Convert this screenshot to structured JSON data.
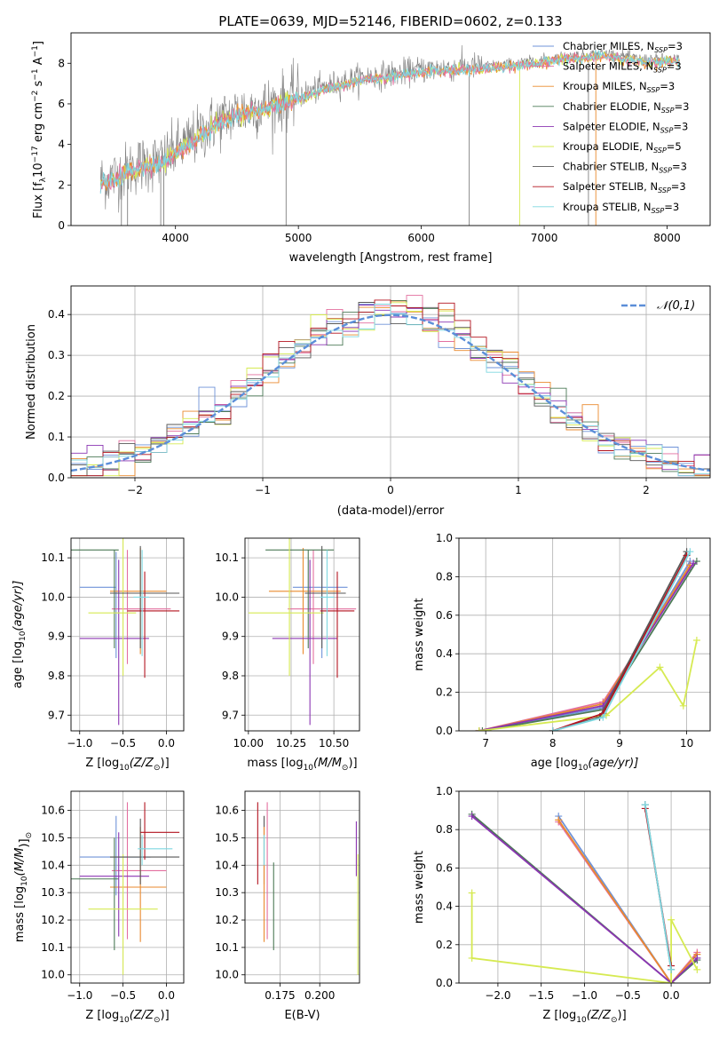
{
  "figure": {
    "title": "PLATE=0639, MJD=52146, FIBERID=0602, z=0.133"
  },
  "colors": {
    "chabrier_miles": "#6f93d8",
    "salpeter_miles": "#e36f9f",
    "kroupa_miles": "#ea8a2e",
    "chabrier_elodie": "#4c7a57",
    "salpeter_elodie": "#8b35b2",
    "kroupa_elodie": "#d6ea52",
    "chabrier_stelib": "#575757",
    "salpeter_stelib": "#b3131f",
    "kroupa_stelib": "#7dd7e0",
    "data_spectrum": "#808080",
    "normal_curve": "#5b8ed8",
    "grid": "#b0b0b0"
  },
  "chart_data": [
    {
      "type": "line",
      "panel": "spectrum",
      "xlabel": "wavelength [Angstrom, rest frame]",
      "ylabel": "Flux [f",
      "ylabel_sub": "λ",
      "ylabel_rest": "10",
      "ylabel_exp": "−17",
      "ylabel_units": " erg cm",
      "ylabel_units_exp": "−2",
      "ylabel_tail": " s",
      "ylabel_tail_exp": "−1",
      "ylabel_end": " A",
      "ylabel_end_exp": "−1",
      "ylabel_close": "]",
      "xlim": [
        3150,
        8350
      ],
      "ylim": [
        0,
        9.5
      ],
      "xticks": [
        4000,
        5000,
        6000,
        7000,
        8000
      ],
      "yticks": [
        0,
        2,
        4,
        6,
        8
      ],
      "continuum": {
        "x": [
          3390,
          3500,
          3700,
          3900,
          4000,
          4150,
          4300,
          4500,
          4800,
          5000,
          5200,
          5500,
          5800,
          6000,
          6300,
          6600,
          6900,
          7100,
          7300,
          7500,
          7800,
          8100
        ],
        "y": [
          2.2,
          2.4,
          3.0,
          3.2,
          3.7,
          4.3,
          5.0,
          5.6,
          6.0,
          6.4,
          6.8,
          7.3,
          7.5,
          7.7,
          7.8,
          7.9,
          8.1,
          8.3,
          8.4,
          8.5,
          8.2,
          8.2
        ]
      },
      "legend": [
        {
          "key": "chabrier_miles",
          "label": "Chabrier MILES, N",
          "sub": "SSP",
          "tail": "=3"
        },
        {
          "key": "salpeter_miles",
          "label": "Salpeter MILES, N",
          "sub": "SSP",
          "tail": "=3"
        },
        {
          "key": "kroupa_miles",
          "label": "Kroupa MILES, N",
          "sub": "SSP",
          "tail": "=3"
        },
        {
          "key": "chabrier_elodie",
          "label": "Chabrier ELODIE, N",
          "sub": "SSP",
          "tail": "=3"
        },
        {
          "key": "salpeter_elodie",
          "label": "Salpeter ELODIE, N",
          "sub": "SSP",
          "tail": "=3"
        },
        {
          "key": "kroupa_elodie",
          "label": "Kroupa ELODIE, N",
          "sub": "SSP",
          "tail": "=5"
        },
        {
          "key": "chabrier_stelib",
          "label": "Chabrier STELIB, N",
          "sub": "SSP",
          "tail": "=3"
        },
        {
          "key": "salpeter_stelib",
          "label": "Salpeter STELIB, N",
          "sub": "SSP",
          "tail": "=3"
        },
        {
          "key": "kroupa_stelib",
          "label": "Kroupa STELIB, N",
          "sub": "SSP",
          "tail": "=3"
        }
      ]
    },
    {
      "type": "histogram",
      "panel": "residuals",
      "xlabel": "(data-model)/error",
      "ylabel": "Normed distribution",
      "xlim": [
        -2.5,
        2.5
      ],
      "ylim": [
        0,
        0.47
      ],
      "xticks": [
        -2,
        -1,
        0,
        1,
        2
      ],
      "xtick_labels": [
        "−2",
        "−1",
        "0",
        "1",
        "2"
      ],
      "yticks": [
        0.0,
        0.1,
        0.2,
        0.3,
        0.4
      ],
      "ytick_labels": [
        "0.0",
        "0.1",
        "0.2",
        "0.3",
        "0.4"
      ],
      "normal_legend": "𝒩(0,1)",
      "bins": [
        -2.5,
        2.5,
        40
      ]
    },
    {
      "type": "scatter",
      "panel": "age_vs_Z",
      "xlabel": "Z [log",
      "xlabel_sub": "10",
      "xlabel_rest": "(Z/Z",
      "xlabel_sub2": "⊙",
      "xlabel_end": ")]",
      "ylabel": "age  [log",
      "ylabel_sub": "10",
      "ylabel_rest": "(age/yr)]",
      "xlim": [
        -1.1,
        0.2
      ],
      "ylim": [
        9.66,
        10.15
      ],
      "xticks": [
        -1.0,
        -0.5,
        0.0
      ],
      "xtick_labels": [
        "−1.0",
        "−0.5",
        "0.0"
      ],
      "yticks": [
        9.7,
        9.8,
        9.9,
        10.0,
        10.1
      ],
      "ytick_labels": [
        "9.7",
        "9.8",
        "9.9",
        "10.0",
        "10.1"
      ],
      "points": [
        {
          "key": "chabrier_miles",
          "x": -0.58,
          "xerr": [
            0.42,
            0.0
          ],
          "y": 10.025,
          "yerr": [
            0.18,
            0.09
          ]
        },
        {
          "key": "salpeter_miles",
          "x": -0.45,
          "xerr": [
            0.18,
            0.5
          ],
          "y": 9.97,
          "yerr": [
            0.14,
            0.15
          ]
        },
        {
          "key": "kroupa_miles",
          "x": -0.3,
          "xerr": [
            0.35,
            0.3
          ],
          "y": 10.015,
          "yerr": [
            0.16,
            0.11
          ]
        },
        {
          "key": "chabrier_elodie",
          "x": -0.6,
          "xerr": [
            0.5,
            0.05
          ],
          "y": 10.12,
          "yerr": [
            0.25,
            0.0
          ]
        },
        {
          "key": "salpeter_elodie",
          "x": -0.55,
          "xerr": [
            0.45,
            0.35
          ],
          "y": 9.895,
          "yerr": [
            0.22,
            0.2
          ]
        },
        {
          "key": "kroupa_elodie",
          "x": -0.5,
          "xerr": [
            0.4,
            0.15
          ],
          "y": 9.96,
          "yerr": [
            0.16,
            0.2
          ]
        },
        {
          "key": "chabrier_stelib",
          "x": -0.3,
          "xerr": [
            0.35,
            0.45
          ],
          "y": 10.01,
          "yerr": [
            0.14,
            0.12
          ]
        },
        {
          "key": "salpeter_stelib",
          "x": -0.25,
          "xerr": [
            0.2,
            0.4
          ],
          "y": 9.965,
          "yerr": [
            0.17,
            0.1
          ]
        },
        {
          "key": "kroupa_stelib",
          "x": -0.28,
          "xerr": [
            0.1,
            0.08
          ],
          "y": 10.0,
          "yerr": [
            0.15,
            0.12
          ]
        }
      ]
    },
    {
      "type": "scatter",
      "panel": "age_vs_mass",
      "xlabel": "mass [log",
      "xlabel_sub": "10",
      "xlabel_rest": "(M/M",
      "xlabel_sub2": "⊙",
      "xlabel_end": ")]",
      "xlim": [
        9.98,
        10.65
      ],
      "ylim": [
        9.66,
        10.15
      ],
      "xticks": [
        10.0,
        10.25,
        10.5
      ],
      "xtick_labels": [
        "10.00",
        "10.25",
        "10.50"
      ],
      "yticks": [
        9.7,
        9.8,
        9.9,
        10.0,
        10.1
      ],
      "ytick_labels": [
        "9.7",
        "9.8",
        "9.9",
        "10.0",
        "10.1"
      ],
      "points": [
        {
          "key": "chabrier_miles",
          "x": 10.43,
          "xerr": [
            0.17,
            0.15
          ],
          "y": 10.025,
          "yerr": [
            0.18,
            0.09
          ]
        },
        {
          "key": "salpeter_miles",
          "x": 10.38,
          "xerr": [
            0.15,
            0.25
          ],
          "y": 9.97,
          "yerr": [
            0.14,
            0.15
          ]
        },
        {
          "key": "kroupa_miles",
          "x": 10.32,
          "xerr": [
            0.2,
            0.22
          ],
          "y": 10.015,
          "yerr": [
            0.16,
            0.11
          ]
        },
        {
          "key": "chabrier_elodie",
          "x": 10.35,
          "xerr": [
            0.25,
            0.15
          ],
          "y": 10.12,
          "yerr": [
            0.25,
            0.0
          ]
        },
        {
          "key": "salpeter_elodie",
          "x": 10.36,
          "xerr": [
            0.22,
            0.16
          ],
          "y": 9.895,
          "yerr": [
            0.22,
            0.2
          ]
        },
        {
          "key": "kroupa_elodie",
          "x": 10.24,
          "xerr": [
            0.24,
            0.2
          ],
          "y": 9.96,
          "yerr": [
            0.16,
            0.2
          ]
        },
        {
          "key": "chabrier_stelib",
          "x": 10.43,
          "xerr": [
            0.1,
            0.14
          ],
          "y": 10.01,
          "yerr": [
            0.14,
            0.12
          ]
        },
        {
          "key": "salpeter_stelib",
          "x": 10.52,
          "xerr": [
            0.1,
            0.1
          ],
          "y": 9.965,
          "yerr": [
            0.17,
            0.1
          ]
        },
        {
          "key": "kroupa_stelib",
          "x": 10.46,
          "xerr": [
            0.04,
            0.04
          ],
          "y": 10.0,
          "yerr": [
            0.15,
            0.12
          ]
        }
      ]
    },
    {
      "type": "line",
      "panel": "mass_weight_vs_age",
      "xlabel": "age  [log",
      "xlabel_sub": "10",
      "xlabel_rest": "(age/yr)]",
      "ylabel": "mass weight",
      "xlim": [
        6.6,
        10.35
      ],
      "ylim": [
        0,
        1.0
      ],
      "xticks": [
        7,
        8,
        9,
        10
      ],
      "yticks": [
        0.0,
        0.2,
        0.4,
        0.6,
        0.8,
        1.0
      ],
      "ytick_labels": [
        "0.0",
        "0.2",
        "0.4",
        "0.6",
        "0.8",
        "1.0"
      ],
      "series": [
        {
          "key": "chabrier_miles",
          "x": [
            6.9,
            8.75,
            10.05
          ],
          "y": [
            0.0,
            0.12,
            0.88
          ]
        },
        {
          "key": "salpeter_miles",
          "x": [
            6.9,
            8.75,
            10.05
          ],
          "y": [
            0.0,
            0.15,
            0.85
          ]
        },
        {
          "key": "kroupa_miles",
          "x": [
            6.9,
            8.75,
            10.05
          ],
          "y": [
            0.0,
            0.14,
            0.86
          ]
        },
        {
          "key": "chabrier_elodie",
          "x": [
            6.95,
            8.75,
            10.15
          ],
          "y": [
            0.0,
            0.11,
            0.88
          ]
        },
        {
          "key": "salpeter_elodie",
          "x": [
            6.9,
            8.75,
            10.1
          ],
          "y": [
            0.0,
            0.13,
            0.87
          ]
        },
        {
          "key": "kroupa_elodie",
          "x": [
            6.9,
            8.8,
            9.6,
            9.95,
            10.15
          ],
          "y": [
            0.0,
            0.08,
            0.33,
            0.13,
            0.47
          ]
        },
        {
          "key": "chabrier_stelib",
          "x": [
            8.0,
            8.7,
            10.0
          ],
          "y": [
            0.0,
            0.07,
            0.93
          ]
        },
        {
          "key": "salpeter_stelib",
          "x": [
            8.0,
            8.75,
            10.0
          ],
          "y": [
            0.0,
            0.09,
            0.91
          ]
        },
        {
          "key": "kroupa_stelib",
          "x": [
            8.0,
            8.75,
            10.05
          ],
          "y": [
            0.0,
            0.07,
            0.93
          ]
        }
      ]
    },
    {
      "type": "scatter",
      "panel": "mass_vs_Z",
      "xlabel": "Z [log",
      "xlabel_sub": "10",
      "xlabel_rest": "(Z/Z",
      "xlabel_sub2": "⊙",
      "xlabel_end": ")]",
      "ylabel": "mass [log",
      "ylabel_sub": "10",
      "ylabel_rest": "(M/M",
      "ylabel_sub2": "⊙",
      "ylabel_end": ")]",
      "xlim": [
        -1.1,
        0.2
      ],
      "ylim": [
        9.97,
        10.67
      ],
      "xticks": [
        -1.0,
        -0.5,
        0.0
      ],
      "xtick_labels": [
        "−1.0",
        "−0.5",
        "0.0"
      ],
      "yticks": [
        10.0,
        10.1,
        10.2,
        10.3,
        10.4,
        10.5,
        10.6
      ],
      "ytick_labels": [
        "10.0",
        "10.1",
        "10.2",
        "10.3",
        "10.4",
        "10.5",
        "10.6"
      ],
      "points": [
        {
          "key": "chabrier_miles",
          "x": -0.58,
          "xerr": [
            0.42,
            0.4
          ],
          "y": 10.43,
          "yerr": [
            0.14,
            0.15
          ]
        },
        {
          "key": "salpeter_miles",
          "x": -0.45,
          "xerr": [
            0.18,
            0.45
          ],
          "y": 10.38,
          "yerr": [
            0.25,
            0.25
          ]
        },
        {
          "key": "kroupa_miles",
          "x": -0.3,
          "xerr": [
            0.35,
            0.3
          ],
          "y": 10.32,
          "yerr": [
            0.2,
            0.22
          ]
        },
        {
          "key": "chabrier_elodie",
          "x": -0.6,
          "xerr": [
            0.5,
            0.05
          ],
          "y": 10.35,
          "yerr": [
            0.26,
            0.15
          ]
        },
        {
          "key": "salpeter_elodie",
          "x": -0.55,
          "xerr": [
            0.45,
            0.35
          ],
          "y": 10.36,
          "yerr": [
            0.22,
            0.16
          ]
        },
        {
          "key": "kroupa_elodie",
          "x": -0.5,
          "xerr": [
            0.4,
            0.4
          ],
          "y": 10.24,
          "yerr": [
            0.24,
            0.2
          ]
        },
        {
          "key": "chabrier_stelib",
          "x": -0.3,
          "xerr": [
            0.35,
            0.45
          ],
          "y": 10.43,
          "yerr": [
            0.1,
            0.14
          ]
        },
        {
          "key": "salpeter_stelib",
          "x": -0.25,
          "xerr": [
            0.05,
            0.4
          ],
          "y": 10.52,
          "yerr": [
            0.1,
            0.11
          ]
        },
        {
          "key": "kroupa_stelib",
          "x": -0.28,
          "xerr": [
            0.05,
            0.35
          ],
          "y": 10.46,
          "yerr": [
            0.06,
            0.05
          ]
        }
      ]
    },
    {
      "type": "scatter",
      "panel": "mass_vs_EBV",
      "xlabel": "E(B-V)",
      "xlim": [
        0.153,
        0.225
      ],
      "ylim": [
        9.97,
        10.67
      ],
      "xticks": [
        0.175,
        0.2
      ],
      "xtick_labels": [
        "0.175",
        "0.200"
      ],
      "yticks": [
        10.0,
        10.1,
        10.2,
        10.3,
        10.4,
        10.5,
        10.6
      ],
      "ytick_labels": [
        "10.0",
        "10.1",
        "10.2",
        "10.3",
        "10.4",
        "10.5",
        "10.6"
      ],
      "points": [
        {
          "key": "salpeter_stelib",
          "x": 0.161,
          "y": 10.43,
          "yerr": [
            0.1,
            0.2
          ]
        },
        {
          "key": "chabrier_stelib",
          "x": 0.165,
          "y": 10.43,
          "yerr": [
            0.1,
            0.15
          ]
        },
        {
          "key": "kroupa_miles",
          "x": 0.165,
          "y": 10.32,
          "yerr": [
            0.2,
            0.22
          ]
        },
        {
          "key": "kroupa_stelib",
          "x": 0.165,
          "y": 10.46,
          "yerr": [
            0.06,
            0.05
          ]
        },
        {
          "key": "salpeter_miles",
          "x": 0.167,
          "y": 10.38,
          "yerr": [
            0.25,
            0.25
          ]
        },
        {
          "key": "chabrier_elodie",
          "x": 0.171,
          "y": 10.25,
          "yerr": [
            0.16,
            0.16
          ]
        },
        {
          "key": "salpeter_elodie",
          "x": 0.223,
          "y": 10.44,
          "yerr": [
            0.08,
            0.12
          ]
        },
        {
          "key": "kroupa_elodie",
          "x": 0.224,
          "y": 10.24,
          "yerr": [
            0.24,
            0.2
          ]
        }
      ]
    },
    {
      "type": "line",
      "panel": "mass_weight_vs_Z",
      "xlabel": "Z [log",
      "xlabel_sub": "10",
      "xlabel_rest": "(Z/Z",
      "xlabel_sub2": "⊙",
      "xlabel_end": ")]",
      "ylabel": "mass weight",
      "xlim": [
        -2.45,
        0.45
      ],
      "ylim": [
        0,
        1.0
      ],
      "xticks": [
        -2.0,
        -1.5,
        -1.0,
        -0.5,
        0.0
      ],
      "xtick_labels": [
        "−2.0",
        "−1.5",
        "−1.0",
        "−0.5",
        "0.0"
      ],
      "yticks": [
        0.0,
        0.2,
        0.4,
        0.6,
        0.8,
        1.0
      ],
      "ytick_labels": [
        "0.0",
        "0.2",
        "0.4",
        "0.6",
        "0.8",
        "1.0"
      ],
      "series": [
        {
          "key": "chabrier_miles",
          "x": [
            -1.3,
            0.0,
            0.3
          ],
          "y": [
            0.87,
            0.0,
            0.13
          ]
        },
        {
          "key": "salpeter_miles",
          "x": [
            -1.3,
            0.0,
            0.3
          ],
          "y": [
            0.84,
            0.0,
            0.16
          ]
        },
        {
          "key": "kroupa_miles",
          "x": [
            -1.3,
            0.0,
            0.3
          ],
          "y": [
            0.85,
            0.0,
            0.15
          ]
        },
        {
          "key": "chabrier_elodie",
          "x": [
            -2.3,
            0.0,
            0.3
          ],
          "y": [
            0.88,
            0.0,
            0.12
          ]
        },
        {
          "key": "salpeter_elodie",
          "x": [
            -2.3,
            0.0,
            0.3
          ],
          "y": [
            0.87,
            0.0,
            0.13
          ]
        },
        {
          "key": "kroupa_elodie",
          "x": [
            -2.3,
            -2.3,
            0.0,
            0.0,
            0.3
          ],
          "y": [
            0.47,
            0.13,
            0.0,
            0.33,
            0.07
          ]
        },
        {
          "key": "chabrier_stelib",
          "x": [
            -0.3,
            0.0
          ],
          "y": [
            0.93,
            0.07
          ]
        },
        {
          "key": "salpeter_stelib",
          "x": [
            -0.3,
            0.0
          ],
          "y": [
            0.91,
            0.09
          ]
        },
        {
          "key": "kroupa_stelib",
          "x": [
            -0.3,
            0.0
          ],
          "y": [
            0.93,
            0.07
          ]
        }
      ]
    }
  ]
}
